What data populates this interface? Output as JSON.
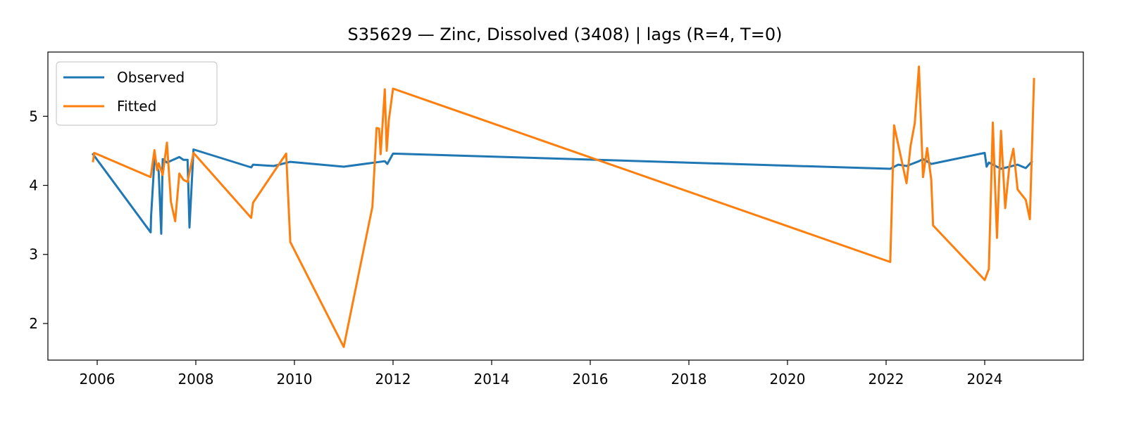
{
  "chart_data": {
    "type": "line",
    "title": "S35629 — Zinc, Dissolved (3408) | lags (R=4, T=0)",
    "xlabel": "",
    "ylabel": "",
    "x_type": "date",
    "xlim": [
      "2005-01-01",
      "2026-01-01"
    ],
    "ylim": [
      1.47,
      5.93
    ],
    "x_ticks": [
      "2006",
      "2008",
      "2010",
      "2012",
      "2014",
      "2016",
      "2018",
      "2020",
      "2022",
      "2024"
    ],
    "y_ticks": [
      "2",
      "3",
      "4",
      "5"
    ],
    "grid": false,
    "legend_position": "upper-left",
    "series": [
      {
        "name": "Observed",
        "color": "#1f77b4",
        "x": [
          "2005-12-01",
          "2007-02-01",
          "2007-02-04",
          "2007-03-01",
          "2007-04-01",
          "2007-04-20",
          "2007-05-01",
          "2007-06-01",
          "2007-09-01",
          "2007-10-01",
          "2007-11-01",
          "2007-11-15",
          "2007-12-15",
          "2009-02-15",
          "2009-03-01",
          "2009-08-01",
          "2009-12-01",
          "2011-01-01",
          "2011-11-01",
          "2011-11-20",
          "2012-01-01",
          "2022-02-01",
          "2022-04-01",
          "2022-06-01",
          "2022-09-01",
          "2022-10-01",
          "2022-12-01",
          "2024-01-01",
          "2024-01-15",
          "2024-02-01",
          "2024-05-01",
          "2024-09-01",
          "2024-11-01",
          "2024-12-15"
        ],
        "values": [
          4.45,
          3.32,
          3.55,
          4.38,
          4.2,
          3.3,
          4.38,
          4.33,
          4.41,
          4.37,
          4.37,
          3.39,
          4.52,
          4.26,
          4.3,
          4.28,
          4.34,
          4.27,
          4.35,
          4.31,
          4.46,
          4.24,
          4.3,
          4.28,
          4.35,
          4.38,
          4.31,
          4.47,
          4.27,
          4.33,
          4.24,
          4.3,
          4.25,
          4.34
        ]
      },
      {
        "name": "Fitted",
        "color": "#ff7f0e",
        "x": [
          "2005-12-01",
          "2005-12-10",
          "2007-02-01",
          "2007-03-01",
          "2007-03-20",
          "2007-04-01",
          "2007-05-01",
          "2007-06-01",
          "2007-07-01",
          "2007-08-01",
          "2007-09-01",
          "2007-10-01",
          "2007-11-01",
          "2007-12-15",
          "2009-02-15",
          "2009-03-01",
          "2009-11-01",
          "2009-12-01",
          "2011-01-01",
          "2011-08-01",
          "2011-09-01",
          "2011-09-20",
          "2011-10-01",
          "2011-11-01",
          "2011-11-15",
          "2011-12-01",
          "2012-01-01",
          "2022-02-01",
          "2022-03-01",
          "2022-06-01",
          "2022-07-01",
          "2022-08-01",
          "2022-09-01",
          "2022-10-01",
          "2022-11-01",
          "2022-12-01",
          "2022-12-15",
          "2024-01-01",
          "2024-02-01",
          "2024-03-01",
          "2024-04-01",
          "2024-05-01",
          "2024-06-01",
          "2024-07-01",
          "2024-08-01",
          "2024-09-01",
          "2024-11-01",
          "2024-12-01",
          "2025-01-01"
        ],
        "values": [
          4.35,
          4.47,
          4.12,
          4.51,
          4.22,
          4.32,
          4.15,
          4.62,
          3.76,
          3.48,
          4.17,
          4.08,
          4.05,
          4.47,
          3.53,
          3.75,
          4.46,
          3.18,
          1.66,
          3.69,
          4.83,
          4.82,
          4.45,
          5.39,
          4.5,
          4.95,
          5.4,
          2.89,
          4.87,
          4.03,
          4.57,
          4.9,
          5.72,
          4.12,
          4.54,
          4.08,
          3.42,
          2.63,
          2.79,
          4.91,
          3.24,
          4.79,
          3.67,
          4.26,
          4.53,
          3.94,
          3.79,
          3.51,
          5.54
        ]
      }
    ]
  }
}
